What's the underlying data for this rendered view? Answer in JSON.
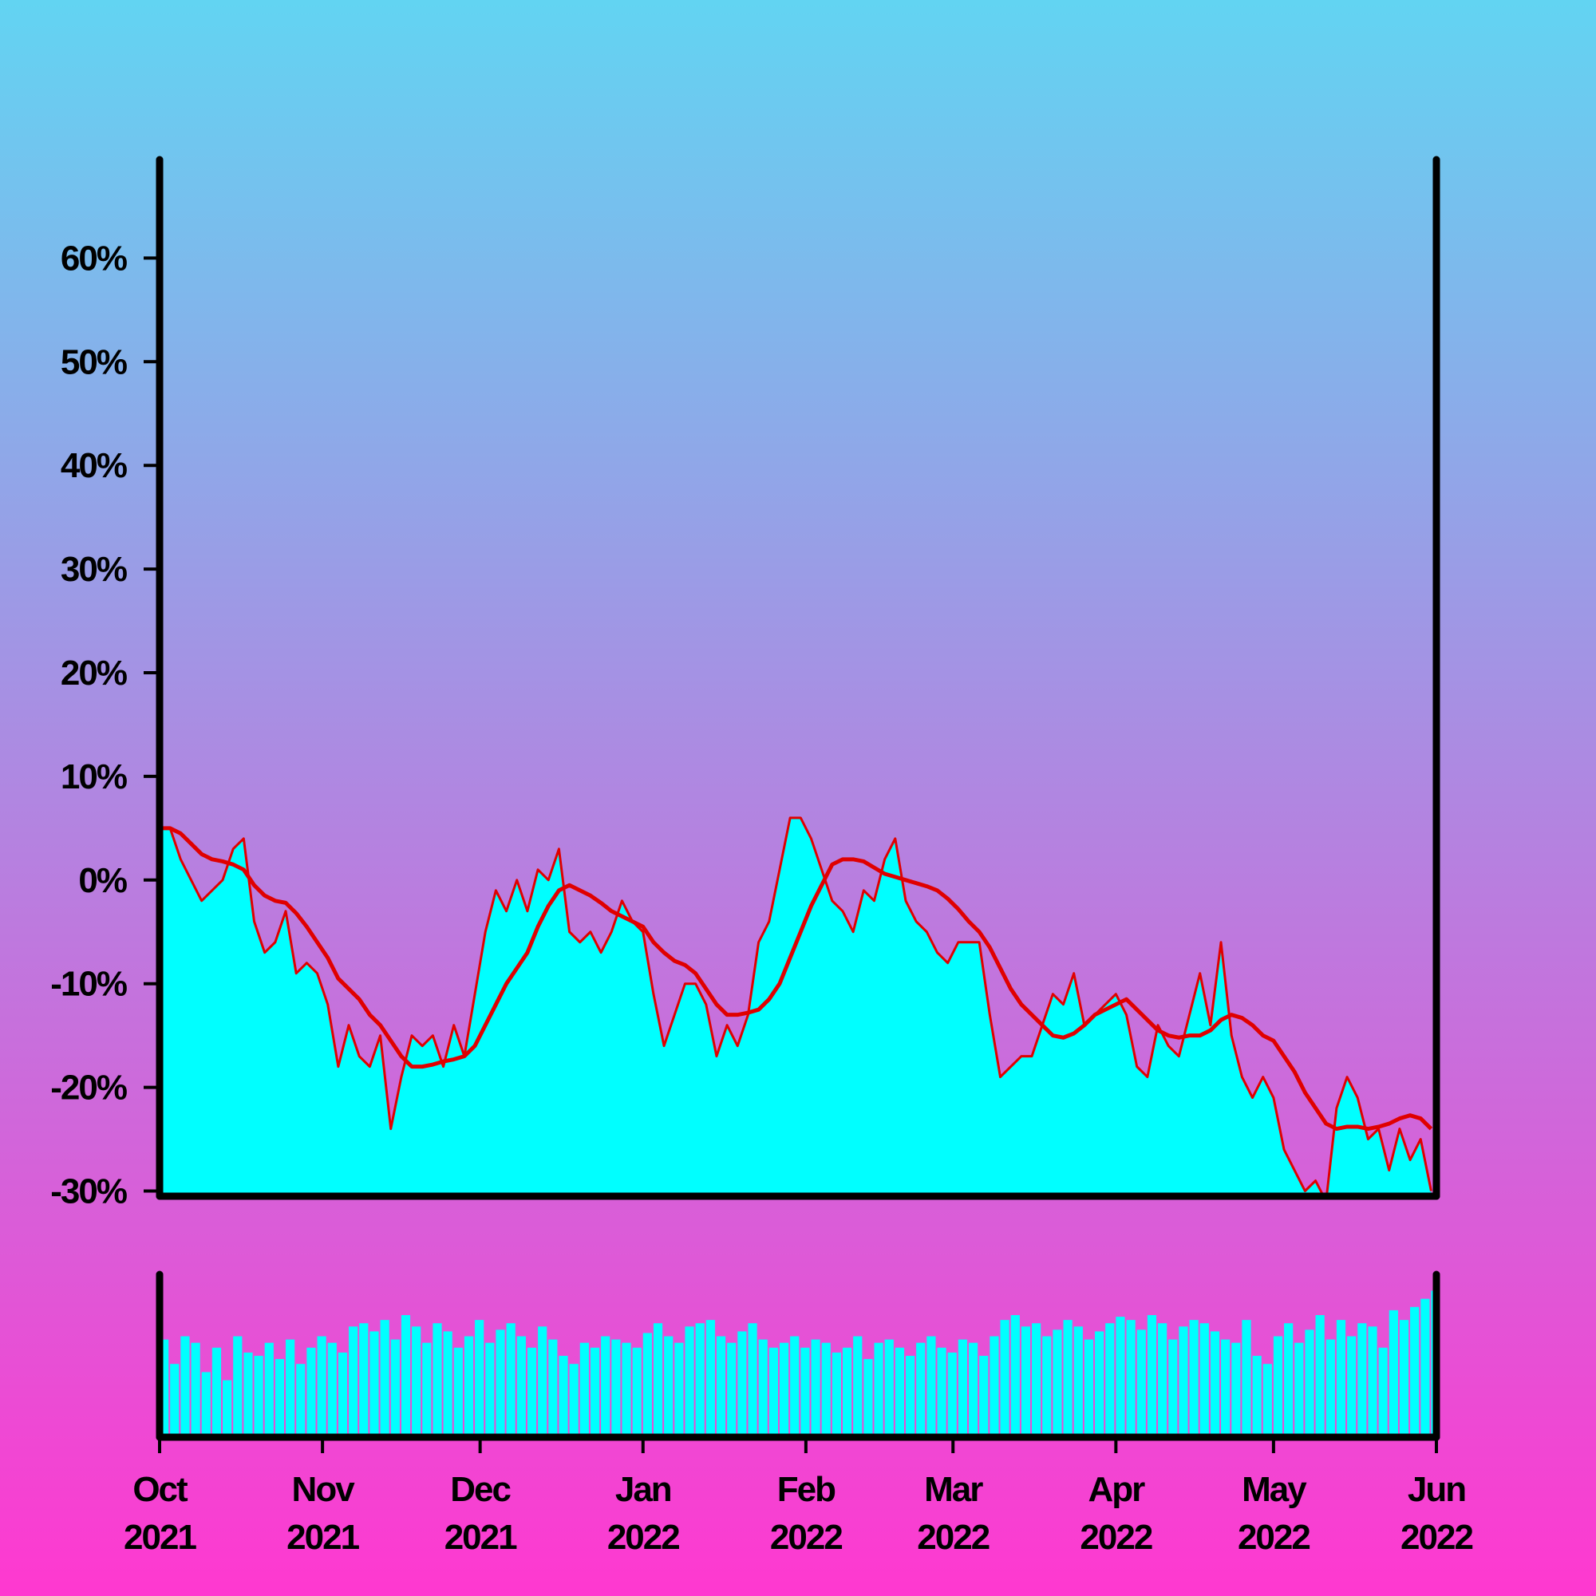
{
  "chart_data": [
    {
      "type": "area",
      "x": [
        0,
        2,
        4,
        6,
        8,
        10,
        12,
        14,
        16,
        18,
        20,
        22,
        24,
        26,
        28,
        30,
        32,
        34,
        36,
        38,
        40,
        42,
        44,
        46,
        48,
        50,
        52,
        54,
        56,
        58,
        60,
        62,
        64,
        66,
        68,
        70,
        72,
        74,
        76,
        78,
        80,
        82,
        84,
        86,
        88,
        90,
        92,
        94,
        96,
        98,
        100,
        102,
        104,
        106,
        108,
        110,
        112,
        114,
        116,
        118,
        120,
        122,
        124,
        126,
        128,
        130,
        132,
        134,
        136,
        138,
        140,
        142,
        144,
        146,
        148,
        150,
        152,
        154,
        156,
        158,
        160,
        162,
        164,
        166,
        168,
        170,
        172,
        174,
        176,
        178,
        180,
        182,
        184,
        186,
        188,
        190,
        192,
        194,
        196,
        198,
        200,
        202,
        204,
        206,
        208,
        210,
        212,
        214,
        216,
        218,
        220,
        222,
        224,
        226,
        228,
        230,
        232,
        234,
        236,
        238,
        240,
        242
      ],
      "xlim": [
        0,
        243
      ],
      "ylim": [
        -30.5,
        69.5
      ],
      "yticks": [
        {
          "value": -30,
          "label": "-30%"
        },
        {
          "value": -20,
          "label": "-20%"
        },
        {
          "value": -10,
          "label": "-10%"
        },
        {
          "value": 0,
          "label": "0%"
        },
        {
          "value": 10,
          "label": "10%"
        },
        {
          "value": 20,
          "label": "20%"
        },
        {
          "value": 30,
          "label": "30%"
        },
        {
          "value": 40,
          "label": "40%"
        },
        {
          "value": 50,
          "label": "50%"
        },
        {
          "value": 60,
          "label": "60%"
        }
      ],
      "series": [
        {
          "color": "#e00000",
          "fill": "#00ffff",
          "values": [
            5,
            5,
            2,
            0,
            -2,
            -1,
            0,
            3,
            4,
            -4,
            -7,
            -6,
            -3,
            -9,
            -8,
            -9,
            -12,
            -18,
            -14,
            -17,
            -18,
            -15,
            -24,
            -19,
            -15,
            -16,
            -15,
            -18,
            -14,
            -17,
            -11,
            -5,
            -1,
            -3,
            0,
            -3,
            1,
            0,
            3,
            -5,
            -6,
            -5,
            -7,
            -5,
            -2,
            -4,
            -5,
            -11,
            -16,
            -13,
            -10,
            -10,
            -12,
            -17,
            -14,
            -16,
            -13,
            -6,
            -4,
            1,
            6,
            6,
            4,
            1,
            -2,
            -3,
            -5,
            -1,
            -2,
            2,
            4,
            -2,
            -4,
            -5,
            -7,
            -8,
            -6,
            -6,
            -6,
            -13,
            -19,
            -18,
            -17,
            -17,
            -14,
            -11,
            -12,
            -9,
            -14,
            -13,
            -12,
            -11,
            -13,
            -18,
            -19,
            -14,
            -16,
            -17,
            -13,
            -9,
            -14,
            -6,
            -15,
            -19,
            -21,
            -19,
            -21,
            -26,
            -28,
            -30,
            -29,
            -31,
            -22,
            -19,
            -21,
            -25,
            -24,
            -28,
            -24,
            -27,
            -25,
            -30
          ]
        },
        {
          "color": "#e00000",
          "values": [
            5,
            5,
            4.5,
            3.5,
            2.5,
            2,
            1.8,
            1.5,
            1,
            -0.5,
            -1.5,
            -2,
            -2.2,
            -3.2,
            -4.5,
            -6,
            -7.5,
            -9.5,
            -10.5,
            -11.5,
            -13,
            -14,
            -15.5,
            -17,
            -18,
            -18,
            -17.8,
            -17.5,
            -17.3,
            -17,
            -16,
            -14,
            -12,
            -10,
            -8.5,
            -7,
            -4.5,
            -2.5,
            -1,
            -0.5,
            -1,
            -1.5,
            -2.2,
            -3,
            -3.5,
            -4,
            -4.5,
            -6,
            -7,
            -7.8,
            -8.2,
            -9,
            -10.5,
            -12,
            -13,
            -13,
            -12.8,
            -12.5,
            -11.5,
            -10,
            -7.5,
            -5,
            -2.5,
            -0.5,
            1.5,
            2,
            2,
            1.8,
            1.2,
            0.6,
            0.3,
            0,
            -0.3,
            -0.6,
            -1,
            -1.8,
            -2.8,
            -4,
            -5,
            -6.5,
            -8.5,
            -10.5,
            -12,
            -13,
            -14,
            -15,
            -15.2,
            -14.8,
            -14,
            -13,
            -12.5,
            -12,
            -11.5,
            -12.5,
            -13.5,
            -14.5,
            -15,
            -15.2,
            -15,
            -15,
            -14.5,
            -13.5,
            -13,
            -13.3,
            -14,
            -15,
            -15.5,
            -17,
            -18.5,
            -20.5,
            -22,
            -23.5,
            -24,
            -23.8,
            -23.8,
            -24,
            -23.8,
            -23.5,
            -23,
            -22.7,
            -23,
            -24
          ]
        }
      ]
    },
    {
      "type": "bar",
      "x": [
        0,
        2,
        4,
        6,
        8,
        10,
        12,
        14,
        16,
        18,
        20,
        22,
        24,
        26,
        28,
        30,
        32,
        34,
        36,
        38,
        40,
        42,
        44,
        46,
        48,
        50,
        52,
        54,
        56,
        58,
        60,
        62,
        64,
        66,
        68,
        70,
        72,
        74,
        76,
        78,
        80,
        82,
        84,
        86,
        88,
        90,
        92,
        94,
        96,
        98,
        100,
        102,
        104,
        106,
        108,
        110,
        112,
        114,
        116,
        118,
        120,
        122,
        124,
        126,
        128,
        130,
        132,
        134,
        136,
        138,
        140,
        142,
        144,
        146,
        148,
        150,
        152,
        154,
        156,
        158,
        160,
        162,
        164,
        166,
        168,
        170,
        172,
        174,
        176,
        178,
        180,
        182,
        184,
        186,
        188,
        190,
        192,
        194,
        196,
        198,
        200,
        202,
        204,
        206,
        208,
        210,
        212,
        214,
        216,
        218,
        220,
        222,
        224,
        226,
        228,
        230,
        232,
        234,
        236,
        238,
        240,
        242
      ],
      "xlim": [
        0,
        243
      ],
      "ylim": [
        0,
        100
      ],
      "color": "#00ffff",
      "values": [
        60,
        45,
        62,
        58,
        40,
        55,
        35,
        62,
        52,
        50,
        58,
        48,
        60,
        45,
        55,
        62,
        58,
        52,
        68,
        70,
        65,
        72,
        60,
        75,
        68,
        58,
        70,
        65,
        55,
        62,
        72,
        58,
        66,
        70,
        62,
        55,
        68,
        60,
        50,
        45,
        58,
        55,
        62,
        60,
        58,
        55,
        64,
        70,
        62,
        58,
        68,
        70,
        72,
        62,
        58,
        65,
        70,
        60,
        55,
        58,
        62,
        55,
        60,
        58,
        52,
        55,
        62,
        48,
        58,
        60,
        55,
        50,
        58,
        62,
        55,
        52,
        60,
        58,
        50,
        62,
        72,
        75,
        68,
        70,
        62,
        66,
        72,
        68,
        60,
        65,
        70,
        74,
        72,
        66,
        75,
        70,
        60,
        68,
        72,
        70,
        65,
        60,
        58,
        72,
        50,
        45,
        62,
        70,
        58,
        66,
        75,
        60,
        72,
        62,
        70,
        68,
        55,
        78,
        72,
        80,
        85,
        90
      ],
      "xticks": [
        {
          "value": 0,
          "label": "Oct 2021"
        },
        {
          "value": 31,
          "label": "Nov 2021"
        },
        {
          "value": 61,
          "label": "Dec 2021"
        },
        {
          "value": 92,
          "label": "Jan 2022"
        },
        {
          "value": 123,
          "label": "Feb 2022"
        },
        {
          "value": 151,
          "label": "Mar 2022"
        },
        {
          "value": 182,
          "label": "Apr 2022"
        },
        {
          "value": 212,
          "label": "May 2022"
        },
        {
          "value": 243,
          "label": "Jun 2022"
        }
      ]
    }
  ]
}
